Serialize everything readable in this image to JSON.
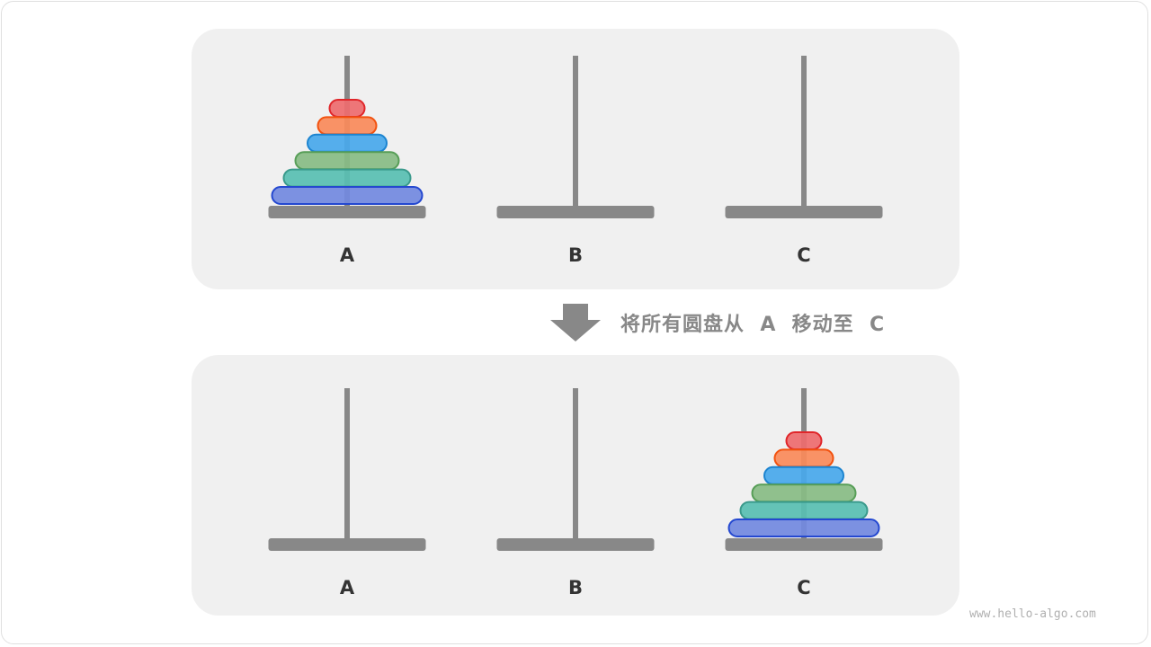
{
  "colors": {
    "panel": "#f0f0f0",
    "rod": "#888888",
    "arrow": "#888888"
  },
  "disk_styles": [
    {
      "fill": "#ee6b6e",
      "stroke": "#e0262a"
    },
    {
      "fill": "#fa8a5a",
      "stroke": "#f2520f"
    },
    {
      "fill": "#48a8ec",
      "stroke": "#1c84d0"
    },
    {
      "fill": "#88bc84",
      "stroke": "#579e57"
    },
    {
      "fill": "#58bfb2",
      "stroke": "#3a9a8c"
    },
    {
      "fill": "#7289e0",
      "stroke": "#2448d0"
    }
  ],
  "states": [
    {
      "pegs": [
        {
          "label": "A",
          "disks": 6
        },
        {
          "label": "B",
          "disks": 0
        },
        {
          "label": "C",
          "disks": 0
        }
      ]
    },
    {
      "pegs": [
        {
          "label": "A",
          "disks": 0
        },
        {
          "label": "B",
          "disks": 0
        },
        {
          "label": "C",
          "disks": 6
        }
      ]
    }
  ],
  "caption": "将所有圆盘从  A  移动至  C",
  "arrow_icon": "arrow-down-icon",
  "watermark": "www.hello-algo.com"
}
